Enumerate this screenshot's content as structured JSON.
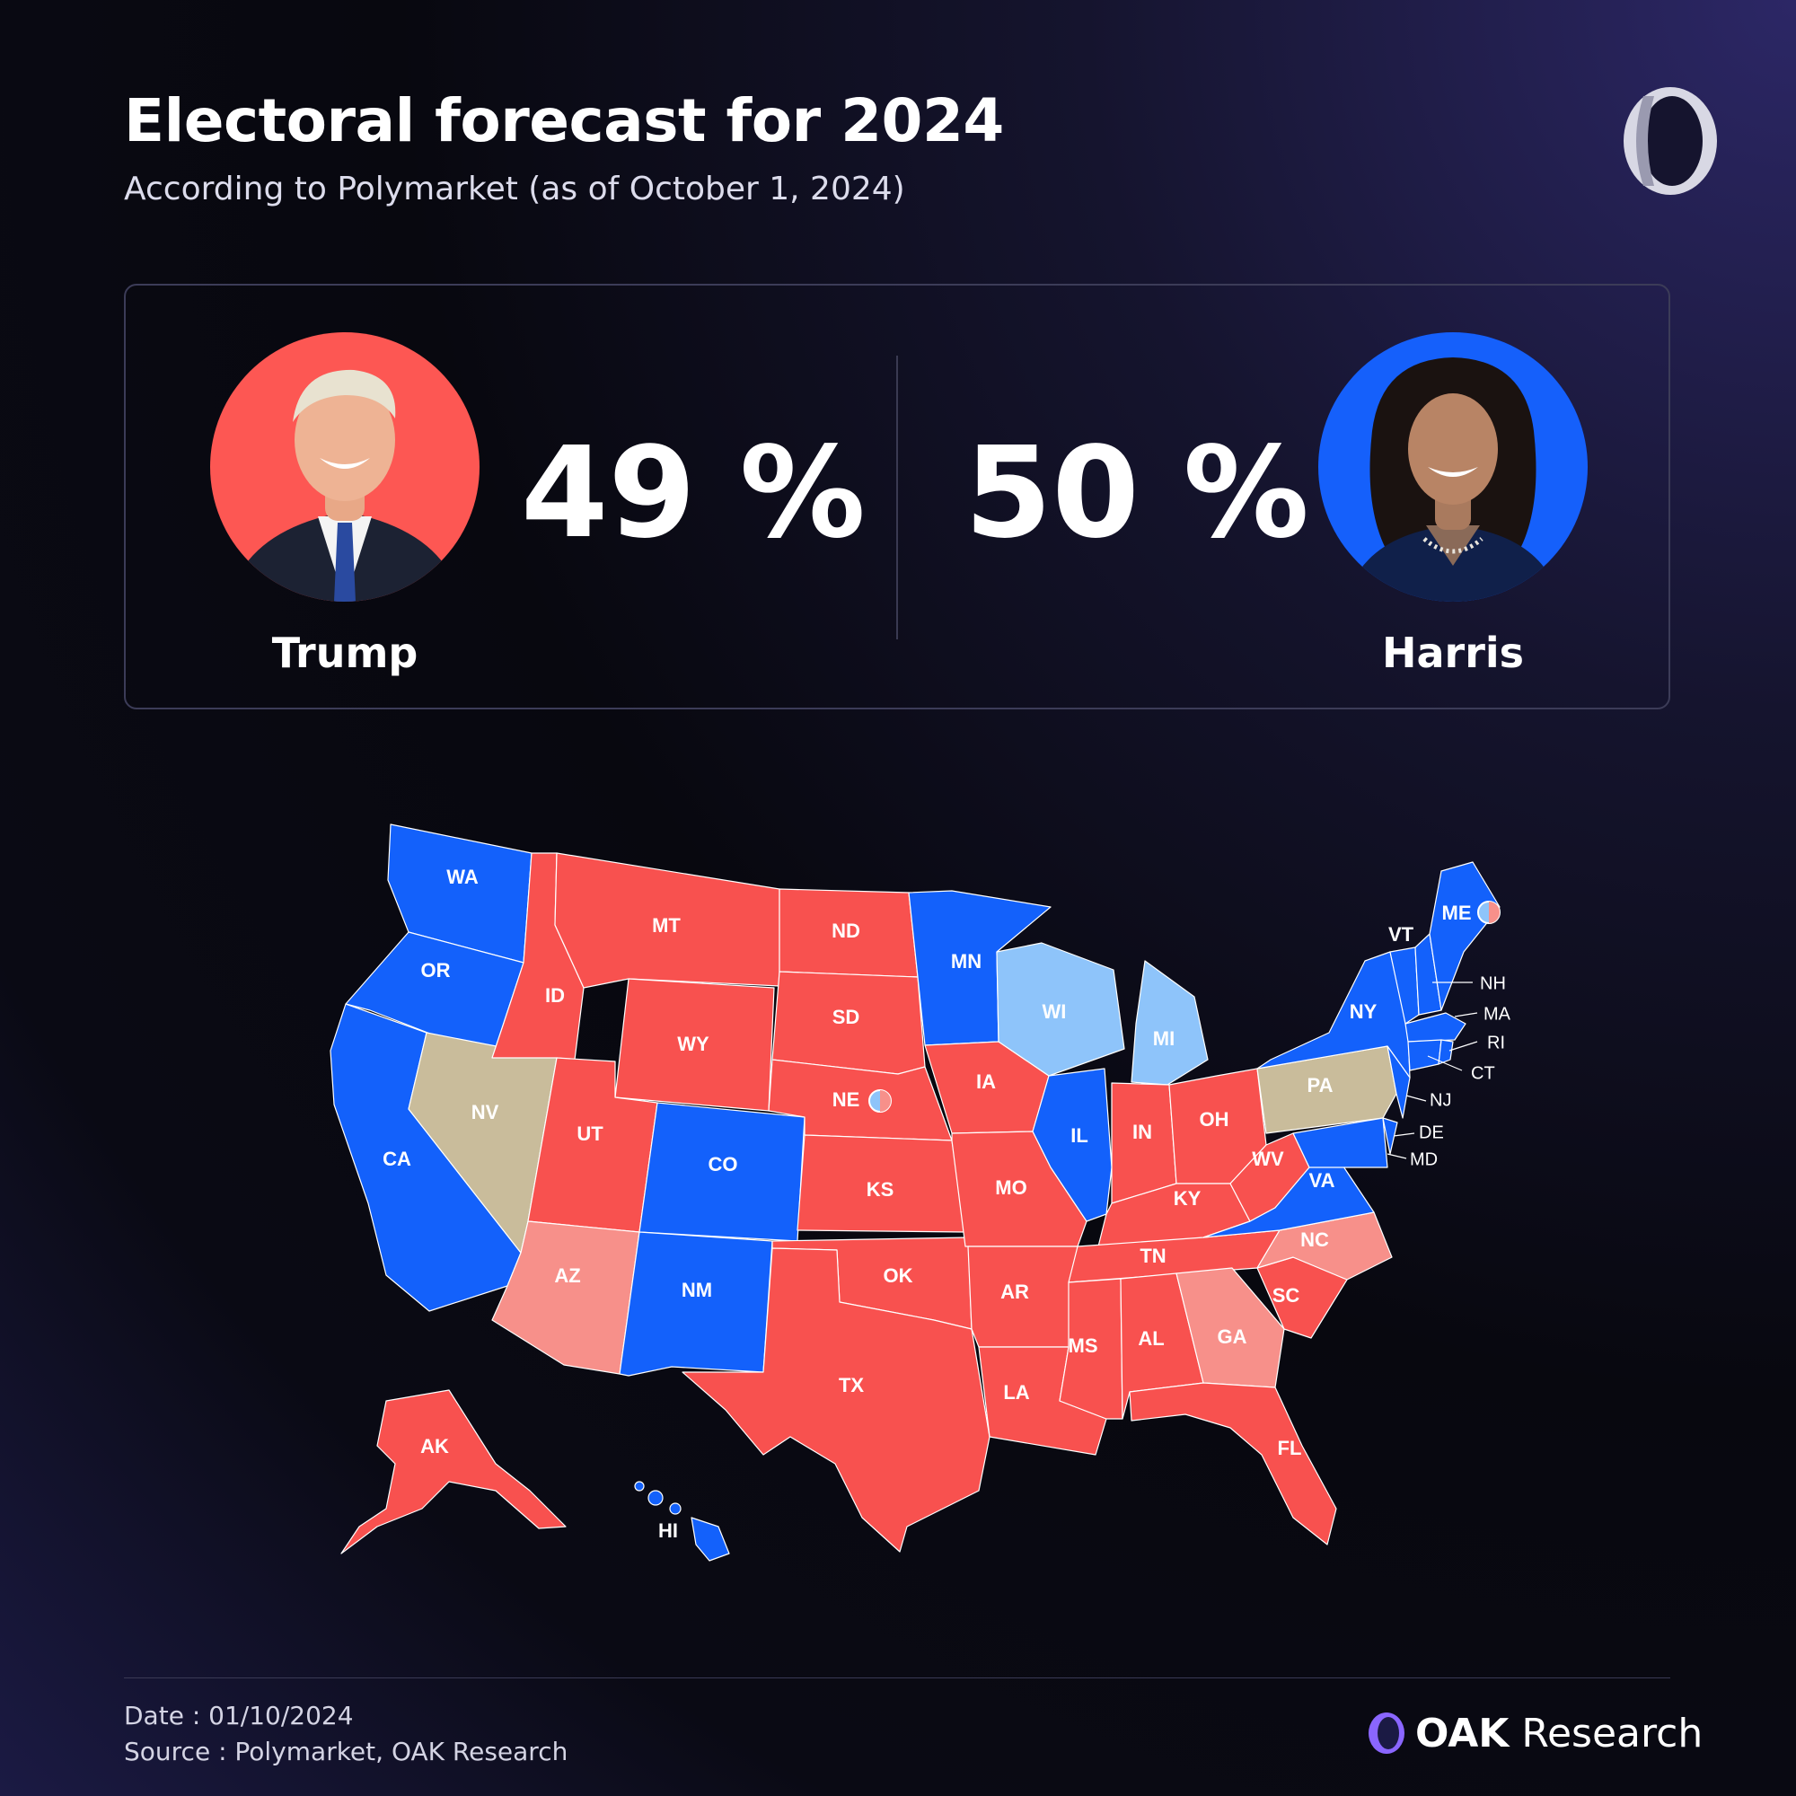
{
  "header": {
    "title": "Electoral forecast for 2024",
    "subtitle": "According to Polymarket (as of October 1, 2024)"
  },
  "candidates": [
    {
      "name": "Trump",
      "percent": "49 %",
      "color": "#fd5753"
    },
    {
      "name": "Harris",
      "percent": "50 %",
      "color": "#1560fb"
    }
  ],
  "map": {
    "legend_colors": {
      "safe_republican": "#f8514f",
      "lean_republican": "#f7908a",
      "safe_democrat": "#1361fb",
      "lean_democrat": "#8ec4fa",
      "tossup": "#c9bc9b"
    },
    "states": {
      "WA": "WA",
      "OR": "OR",
      "CA": "CA",
      "NV": "NV",
      "ID": "ID",
      "MT": "MT",
      "WY": "WY",
      "UT": "UT",
      "CO": "CO",
      "AZ": "AZ",
      "NM": "NM",
      "ND": "ND",
      "SD": "SD",
      "NE": "NE",
      "KS": "KS",
      "OK": "OK",
      "TX": "TX",
      "MN": "MN",
      "IA": "IA",
      "MO": "MO",
      "AR": "AR",
      "LA": "LA",
      "WI": "WI",
      "IL": "IL",
      "MI": "MI",
      "IN": "IN",
      "OH": "OH",
      "KY": "KY",
      "TN": "TN",
      "MS": "MS",
      "AL": "AL",
      "GA": "GA",
      "FL": "FL",
      "SC": "SC",
      "NC": "NC",
      "VA": "VA",
      "WV": "WV",
      "PA": "PA",
      "NY": "NY",
      "VT": "VT",
      "ME": "ME",
      "NH": "NH",
      "MA": "MA",
      "RI": "RI",
      "CT": "CT",
      "NJ": "NJ",
      "DE": "DE",
      "MD": "MD",
      "AK": "AK",
      "HI": "HI"
    }
  },
  "footer": {
    "date": "Date : 01/10/2024",
    "source": "Source : Polymarket, OAK Research",
    "brand_bold": "OAK",
    "brand_rest": "Research"
  }
}
